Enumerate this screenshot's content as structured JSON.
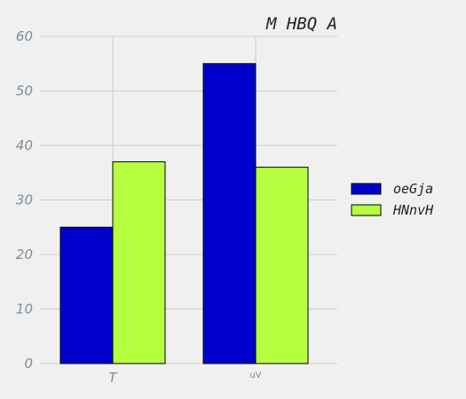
{
  "chart_data": {
    "type": "bar",
    "title": "M HBQ A",
    "xlabel": "",
    "ylabel": "",
    "categories": [
      "T",
      "uV"
    ],
    "series": [
      {
        "name": "oeGja",
        "values": [
          25,
          55
        ],
        "color": "#0000cc"
      },
      {
        "name": "HNnvH",
        "values": [
          37,
          36
        ],
        "color": "#b5ff40"
      }
    ],
    "ylim": [
      0,
      60
    ],
    "yticks": [
      0,
      10,
      20,
      30,
      40,
      50,
      60
    ],
    "grid": true,
    "legend_position": "right"
  }
}
